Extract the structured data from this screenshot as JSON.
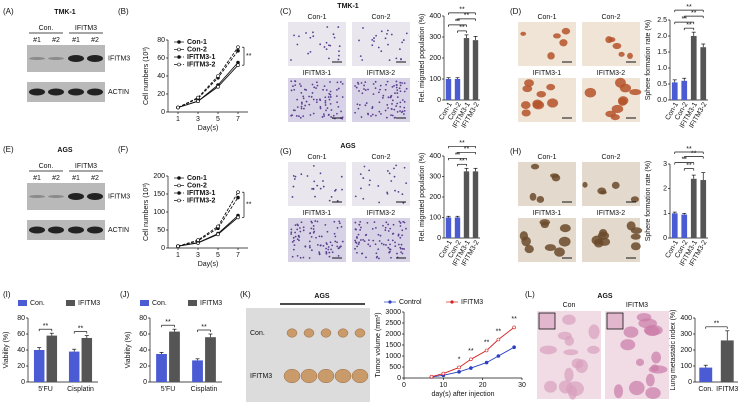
{
  "blots": [
    {
      "label": "(A)",
      "title": "TMK-1",
      "groups": [
        "Con.",
        "IFITM3"
      ],
      "lanes": [
        "#1",
        "#2",
        "#1",
        "#2"
      ],
      "rows": [
        "IFITM3",
        "ACTIN"
      ]
    },
    {
      "label": "(E)",
      "title": "AGS",
      "groups": [
        "Con.",
        "IFITM3"
      ],
      "lanes": [
        "#1",
        "#2",
        "#1",
        "#2"
      ],
      "rows": [
        "IFITM3",
        "ACTIN"
      ]
    }
  ],
  "micrographs": [
    {
      "label": "(C)",
      "title": "TMK-1",
      "captions": [
        "Con-1",
        "Con-2",
        "IFITM3-1",
        "IFITM3-2"
      ]
    },
    {
      "label": "(D)",
      "captions": [
        "Con-1",
        "Con-2",
        "IFITM3-1",
        "IFITM3-2"
      ]
    },
    {
      "label": "(G)",
      "title": "AGS",
      "captions": [
        "Con-1",
        "Con-2",
        "IFITM3-1",
        "IFITM3-2"
      ]
    },
    {
      "label": "(H)",
      "captions": [
        "Con-1",
        "Con-2",
        "IFITM3-1",
        "IFITM3-2"
      ]
    }
  ],
  "tumors": {
    "label": "(K)",
    "title": "AGS",
    "rows": [
      "Con.",
      "IFITM3"
    ]
  },
  "histology": {
    "label": "(L)",
    "title": "AGS",
    "captions": [
      "Con",
      "IFITM3"
    ]
  },
  "chart_data": [
    {
      "type": "line",
      "label": "(B)",
      "ylabel": "Cell numbers (10³)",
      "xlabel": "Day(s)",
      "x": [
        1,
        3,
        5,
        7
      ],
      "xlim": [
        0,
        8
      ],
      "xticks": [
        1,
        3,
        5,
        7
      ],
      "ylim": [
        0,
        80
      ],
      "yticks": [
        0,
        20,
        40,
        60,
        80
      ],
      "legend": "upper left",
      "annotation": "**",
      "series": [
        {
          "name": "Con-1",
          "color": "#111111",
          "values": [
            5,
            12,
            30,
            55
          ]
        },
        {
          "name": "Con-2",
          "color": "#111111",
          "values": [
            5,
            12,
            28,
            52
          ]
        },
        {
          "name": "IFITM3-1",
          "color": "#111111",
          "dashed": true,
          "values": [
            5,
            15,
            38,
            68
          ]
        },
        {
          "name": "IFITM3-2",
          "color": "#111111",
          "dashed": true,
          "values": [
            5,
            16,
            40,
            72
          ]
        }
      ]
    },
    {
      "type": "bar",
      "ylabel": "Rel. migrated population (%)",
      "categories": [
        "Con-1",
        "Con-2",
        "IFITM3-1",
        "IFITM3-2"
      ],
      "values": [
        100,
        100,
        295,
        285
      ],
      "errors": [
        6,
        6,
        15,
        18
      ],
      "colors": [
        "#4a5bd4",
        "#4a5bd4",
        "#555555",
        "#555555"
      ],
      "ylim": [
        0,
        400
      ],
      "yticks": [
        0,
        100,
        200,
        300,
        400
      ],
      "annotations": [
        "**",
        "**",
        "**",
        "**"
      ]
    },
    {
      "type": "bar",
      "ylabel": "Sphere formation rate (%)",
      "categories": [
        "Con-1",
        "Con-2",
        "IFITM3-1",
        "IFITM3-2"
      ],
      "values": [
        0.55,
        0.6,
        2.0,
        1.65
      ],
      "errors": [
        0.08,
        0.08,
        0.12,
        0.1
      ],
      "colors": [
        "#4a5bd4",
        "#4a5bd4",
        "#555555",
        "#555555"
      ],
      "ylim": [
        0,
        2.5
      ],
      "yticks": [
        {
          "value": 0,
          "label": "0.0"
        },
        0.5,
        {
          "value": 1,
          "label": "1.0"
        },
        1.5,
        {
          "value": 2,
          "label": "2.0"
        },
        2.5
      ],
      "annotations": [
        "**",
        "**",
        "**",
        "**"
      ]
    },
    {
      "type": "line",
      "label": "(F)",
      "ylabel": "Cell numbers (10³)",
      "xlabel": "Day(s)",
      "x": [
        1,
        3,
        5,
        7
      ],
      "xlim": [
        0,
        8
      ],
      "xticks": [
        1,
        3,
        5,
        7
      ],
      "ylim": [
        0,
        200
      ],
      "yticks": [
        0,
        50,
        100,
        150,
        200
      ],
      "legend": "upper left",
      "annotation": "**",
      "series": [
        {
          "name": "Con-1",
          "color": "#111111",
          "values": [
            5,
            15,
            40,
            90
          ]
        },
        {
          "name": "Con-2",
          "color": "#111111",
          "values": [
            5,
            14,
            38,
            85
          ]
        },
        {
          "name": "IFITM3-1",
          "color": "#111111",
          "dashed": true,
          "values": [
            5,
            20,
            55,
            140
          ]
        },
        {
          "name": "IFITM3-2",
          "color": "#111111",
          "dashed": true,
          "values": [
            5,
            22,
            60,
            155
          ]
        }
      ]
    },
    {
      "type": "bar",
      "ylabel": "Rel. migrated population (%)",
      "categories": [
        "Con-1",
        "Con-2",
        "IFITM3-1",
        "IFITM3-2"
      ],
      "values": [
        100,
        100,
        325,
        325
      ],
      "errors": [
        6,
        6,
        15,
        15
      ],
      "colors": [
        "#4a5bd4",
        "#4a5bd4",
        "#555555",
        "#555555"
      ],
      "ylim": [
        0,
        400
      ],
      "yticks": [
        0,
        100,
        200,
        300,
        400
      ],
      "annotations": [
        "**",
        "**",
        "**",
        "**"
      ]
    },
    {
      "type": "bar",
      "ylabel": "Sphere formation rate (%)",
      "categories": [
        "Con-1",
        "Con-2",
        "IFITM3-1",
        "IFITM3-2"
      ],
      "values": [
        1.0,
        0.95,
        2.4,
        2.35
      ],
      "errors": [
        0.05,
        0.05,
        0.15,
        0.3
      ],
      "colors": [
        "#4a5bd4",
        "#4a5bd4",
        "#555555",
        "#555555"
      ],
      "ylim": [
        0,
        3
      ],
      "yticks": [
        0,
        1,
        2,
        3
      ],
      "annotations": [
        "**",
        "**",
        "**",
        "**"
      ]
    },
    {
      "type": "bar",
      "label": "(I)",
      "ylabel": "Viability (%)",
      "categories": [
        "5'FU",
        "Cisplatin"
      ],
      "ylim": [
        0,
        80
      ],
      "yticks": [
        0,
        20,
        40,
        60,
        80
      ],
      "legend": "top",
      "annotations": [
        "**",
        "**"
      ],
      "series": [
        {
          "name": "Con.",
          "color": "#4a5bd4",
          "values": [
            40,
            38
          ],
          "errors": [
            3,
            3
          ]
        },
        {
          "name": "IFITM3",
          "color": "#555555",
          "values": [
            58,
            55
          ],
          "errors": [
            3,
            3
          ]
        }
      ]
    },
    {
      "type": "bar",
      "label": "(J)",
      "ylabel": "Viability (%)",
      "categories": [
        "5'FU",
        "Cisplatin"
      ],
      "ylim": [
        0,
        80
      ],
      "yticks": [
        0,
        20,
        40,
        60,
        80
      ],
      "legend": "top",
      "annotations": [
        "**",
        "**"
      ],
      "series": [
        {
          "name": "Con.",
          "color": "#4a5bd4",
          "values": [
            35,
            27
          ],
          "errors": [
            2,
            2
          ]
        },
        {
          "name": "IFITM3",
          "color": "#555555",
          "values": [
            63,
            56
          ],
          "errors": [
            3,
            4
          ]
        }
      ]
    },
    {
      "type": "line",
      "ylabel": "Tumor volume (mm³)",
      "xlabel": "day(s) after injection",
      "x": [
        7,
        10,
        14,
        17,
        21,
        24,
        28
      ],
      "xlim": [
        0,
        30
      ],
      "xticks": [
        0,
        10,
        20,
        30
      ],
      "ylim": [
        0,
        3000
      ],
      "yticks": [
        0,
        500,
        1000,
        1500,
        2000,
        2500,
        3000
      ],
      "legend": "top",
      "annotations": [
        {
          "x": 14,
          "text": "*"
        },
        {
          "x": 17,
          "text": "**"
        },
        {
          "x": 21,
          "text": "**"
        },
        {
          "x": 24,
          "text": "**"
        },
        {
          "x": 28,
          "text": "**"
        }
      ],
      "series": [
        {
          "name": "Control",
          "color": "#2a3fbf",
          "values": [
            50,
            120,
            280,
            450,
            700,
            1000,
            1400
          ]
        },
        {
          "name": "IFITM3",
          "color": "#d62020",
          "values": [
            60,
            200,
            480,
            850,
            1250,
            1750,
            2300
          ]
        }
      ]
    },
    {
      "type": "bar",
      "ylabel": "Lung metastatic index (%)",
      "categories": [
        "Con.",
        "IFITM3"
      ],
      "values": [
        90,
        260
      ],
      "errors": [
        15,
        60
      ],
      "colors": [
        "#4a5bd4",
        "#555555"
      ],
      "ylim": [
        0,
        400
      ],
      "yticks": [
        0,
        100,
        200,
        300,
        400
      ],
      "annotations": [
        "**"
      ]
    }
  ]
}
